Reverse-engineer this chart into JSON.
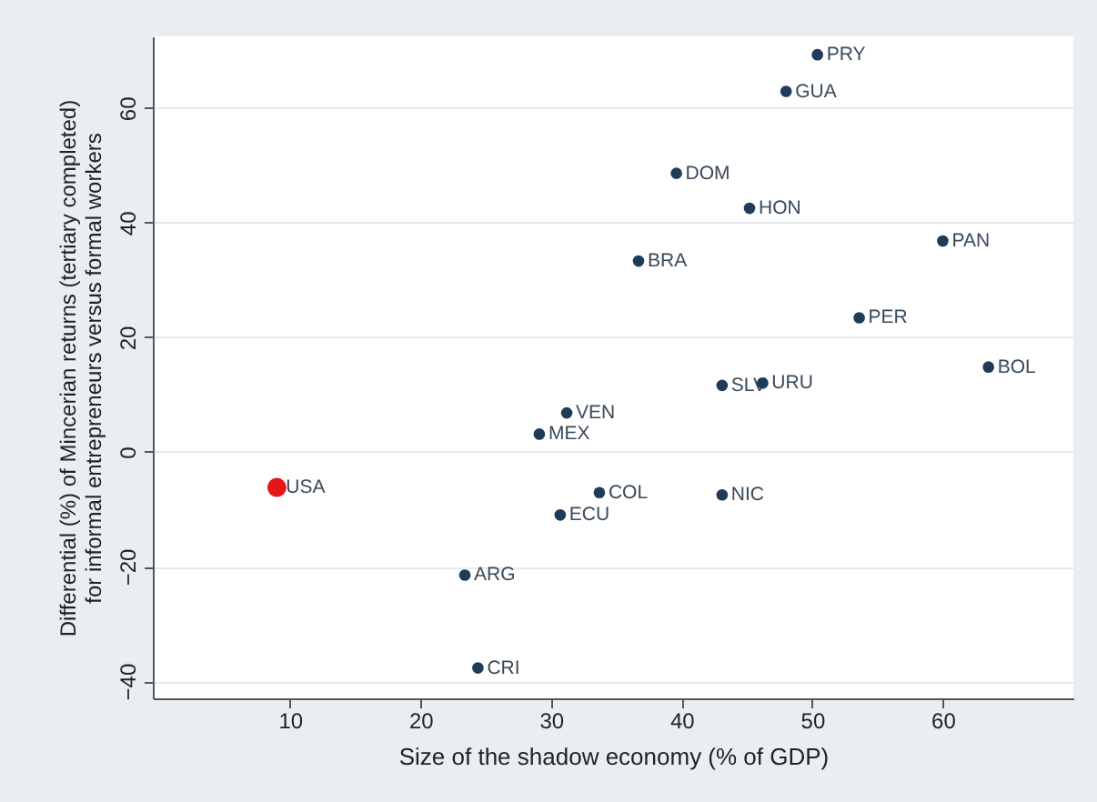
{
  "chart_data": {
    "type": "scatter",
    "xlabel": "Size of the shadow economy (% of GDP)",
    "ylabel": "Differential (%) of Mincerian returns (tertiary completed)\nfor informal entrepreneurs versus formal workers",
    "xlim": [
      -0.5,
      70
    ],
    "xticks": [
      10,
      20,
      30,
      40,
      50,
      60
    ],
    "ylim": [
      -43,
      72.5
    ],
    "yticks": [
      -40,
      -20,
      0,
      20,
      40,
      60
    ],
    "grid": "y",
    "marker": "circle",
    "series": [
      {
        "color": "#1f3b5a",
        "x": [
          50.4,
          48.0,
          39.6,
          45.2,
          60.0,
          36.7,
          53.6,
          63.5,
          43.1,
          46.2,
          31.2,
          29.1,
          33.7,
          43.1,
          30.7,
          23.4,
          24.4
        ],
        "values": [
          69.3,
          62.9,
          48.6,
          42.5,
          36.8,
          33.3,
          23.4,
          14.8,
          11.6,
          12.0,
          6.8,
          3.1,
          -7.1,
          -7.5,
          -11,
          -21.5,
          -37.7
        ]
      },
      {
        "color": "#e8141c",
        "x": [
          9.0
        ],
        "values": [
          -6.2
        ]
      }
    ],
    "annotations": [
      {
        "text": "PRY",
        "x": 50.4,
        "y": 69.3
      },
      {
        "text": "GUA",
        "x": 48.0,
        "y": 62.9
      },
      {
        "text": "DOM",
        "x": 39.6,
        "y": 48.6
      },
      {
        "text": "HON",
        "x": 45.2,
        "y": 42.5
      },
      {
        "text": "PAN",
        "x": 60.0,
        "y": 36.8
      },
      {
        "text": "BRA",
        "x": 36.7,
        "y": 33.3
      },
      {
        "text": "PER",
        "x": 53.6,
        "y": 23.4
      },
      {
        "text": "BOL",
        "x": 63.5,
        "y": 14.8
      },
      {
        "text": "SLV",
        "x": 43.1,
        "y": 11.6
      },
      {
        "text": "URU",
        "x": 46.2,
        "y": 12.0
      },
      {
        "text": "VEN",
        "x": 31.2,
        "y": 6.8
      },
      {
        "text": "MEX",
        "x": 29.1,
        "y": 3.1
      },
      {
        "text": "USA",
        "x": 9.0,
        "y": -6.2
      },
      {
        "text": "COL",
        "x": 33.7,
        "y": -7.1
      },
      {
        "text": "NIC",
        "x": 43.1,
        "y": -7.5
      },
      {
        "text": "ECU",
        "x": 30.7,
        "y": -11
      },
      {
        "text": "ARG",
        "x": 23.4,
        "y": -21.5
      },
      {
        "text": "CRI",
        "x": 24.4,
        "y": -37.7
      }
    ]
  }
}
